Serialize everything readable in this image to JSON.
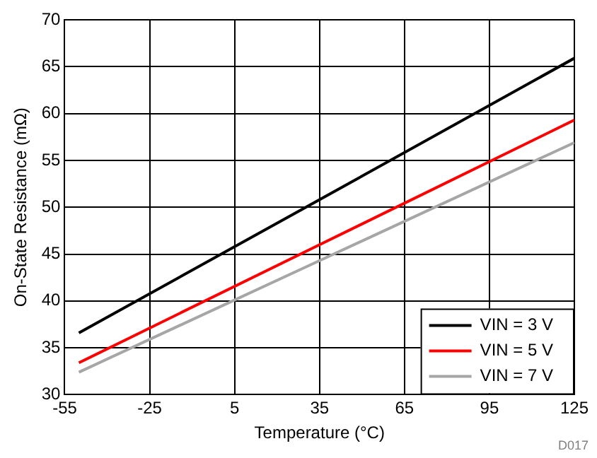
{
  "chart_data": {
    "type": "line",
    "xlabel": "Temperature (°C)",
    "ylabel": "On-State Resistance (mΩ)",
    "xlim": [
      -55,
      125
    ],
    "xticks": [
      -55,
      -25,
      5,
      35,
      65,
      95,
      125
    ],
    "ylim": [
      30,
      70
    ],
    "yticks": [
      30,
      35,
      40,
      45,
      50,
      55,
      60,
      65,
      70
    ],
    "grid": true,
    "legend": "bottom right",
    "marker": "none",
    "line_style": "solid",
    "series": [
      {
        "name": "VIN = 3 V",
        "color": "#000000",
        "x": [
          -50,
          35,
          125
        ],
        "values": [
          36.6,
          50.8,
          65.9
        ]
      },
      {
        "name": "VIN = 5 V",
        "color": "#ff0000",
        "x": [
          -50,
          35,
          125
        ],
        "values": [
          33.4,
          46.0,
          59.3
        ]
      },
      {
        "name": "VIN = 7 V",
        "color": "#a6a6a6",
        "x": [
          -50,
          35,
          125
        ],
        "values": [
          32.4,
          44.3,
          56.9
        ]
      }
    ],
    "annotations": [
      "D017"
    ]
  }
}
